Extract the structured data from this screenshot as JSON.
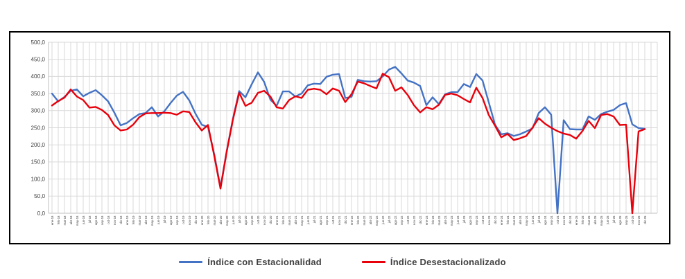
{
  "chart_data": {
    "type": "line",
    "grid": true,
    "legend_position": "bottom",
    "ylim": [
      0,
      500
    ],
    "y_tick_labels": [
      "500,0",
      "450,0",
      "400,0",
      "350,0",
      "300,0",
      "250,0",
      "200,0",
      "150,0",
      "100,0",
      "50,0",
      "0,0"
    ],
    "categories": [
      "ene-18",
      "feb-18",
      "mar-18",
      "abr-18",
      "may-18",
      "jun-18",
      "jul-18",
      "ago-18",
      "sep-18",
      "oct-18",
      "nov-18",
      "dic-18",
      "ene-19",
      "feb-19",
      "mar-19",
      "abr-19",
      "may-19",
      "jun-19",
      "jul-19",
      "ago-19",
      "sep-19",
      "oct-19",
      "nov-19",
      "dic-19",
      "ene-20",
      "feb-20",
      "mar-20",
      "abr-20",
      "may-20",
      "jun-20",
      "jul-20",
      "ago-20",
      "sep-20",
      "oct-20",
      "nov-20",
      "dic-20",
      "ene-21",
      "feb-21",
      "mar-21",
      "abr-21",
      "may-21",
      "jun-21",
      "jul-21",
      "ago-21",
      "sep-21",
      "oct-21",
      "nov-21",
      "dic-21",
      "ene-22",
      "feb-22",
      "mar-22",
      "abr-22",
      "may-22",
      "jun-22",
      "jul-22",
      "ago-22",
      "sep-22",
      "oct-22",
      "nov-22",
      "dic-22",
      "ene-23",
      "feb-23",
      "mar-23",
      "abr-23",
      "may-23",
      "jun-23",
      "jul-23",
      "ago-23",
      "sep-23",
      "oct-23",
      "nov-23",
      "dic-23",
      "ene-24",
      "feb-24",
      "mar-24",
      "abr-24",
      "may-24",
      "jun-24",
      "jul-24",
      "ago-24",
      "sep-24",
      "oct-24",
      "nov-24",
      "dic-24",
      "ene-25",
      "feb-25",
      "mar-25",
      "abr-25",
      "may-25",
      "jun-25",
      "jul-25",
      "ago-25",
      "sep-25",
      "oct-25",
      "nov-25",
      "dic-25"
    ],
    "series": [
      {
        "name": "Índice con Estacionalidad",
        "color": "#4472C4",
        "values": [
          350,
          327,
          340,
          358,
          362,
          342,
          352,
          360,
          345,
          327,
          294,
          257,
          264,
          278,
          290,
          293,
          310,
          283,
          298,
          322,
          344,
          355,
          330,
          291,
          259,
          252,
          172,
          75,
          182,
          277,
          357,
          339,
          377,
          412,
          384,
          332,
          314,
          356,
          356,
          341,
          350,
          374,
          379,
          378,
          399,
          405,
          407,
          337,
          340,
          390,
          386,
          385,
          386,
          400,
          420,
          428,
          409,
          388,
          382,
          372,
          316,
          339,
          319,
          348,
          354,
          354,
          378,
          369,
          407,
          388,
          324,
          259,
          231,
          234,
          226,
          231,
          239,
          248,
          293,
          310,
          288,
          0,
          272,
          246,
          245,
          245,
          283,
          273,
          290,
          297,
          302,
          316,
          322,
          260,
          249,
          247
        ]
      },
      {
        "name": "Índice Desestacionalizado",
        "color": "#E8000B",
        "values": [
          315,
          328,
          338,
          362,
          341,
          331,
          309,
          311,
          302,
          287,
          257,
          242,
          245,
          259,
          281,
          292,
          293,
          293,
          294,
          293,
          288,
          298,
          296,
          266,
          242,
          258,
          168,
          72,
          180,
          274,
          352,
          314,
          323,
          352,
          358,
          341,
          310,
          306,
          331,
          342,
          337,
          361,
          364,
          361,
          348,
          365,
          358,
          325,
          348,
          385,
          380,
          372,
          365,
          408,
          398,
          358,
          368,
          346,
          316,
          295,
          310,
          304,
          317,
          346,
          350,
          345,
          334,
          324,
          367,
          337,
          287,
          256,
          222,
          232,
          214,
          219,
          226,
          250,
          278,
          262,
          250,
          240,
          233,
          229,
          218,
          240,
          270,
          249,
          287,
          290,
          283,
          258,
          259,
          0,
          239,
          246
        ]
      }
    ]
  }
}
